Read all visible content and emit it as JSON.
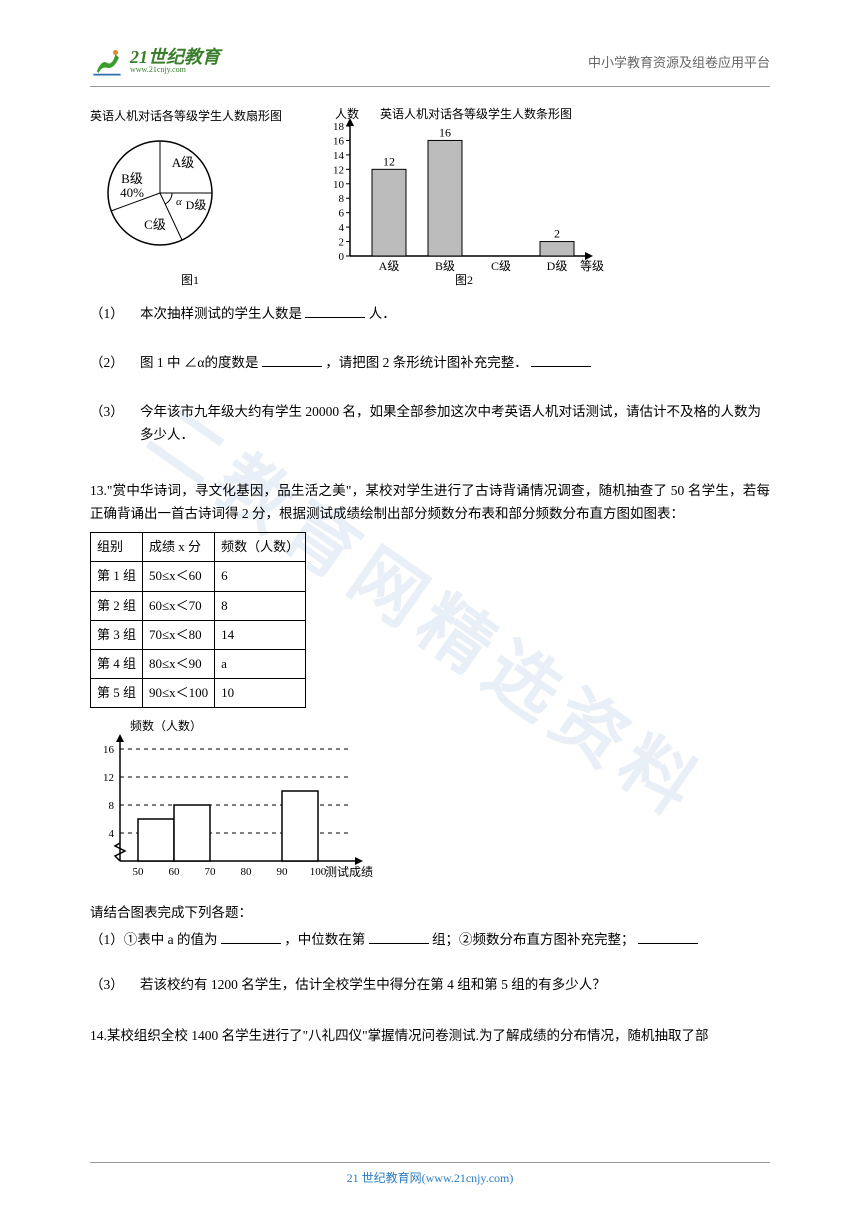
{
  "header": {
    "logo_title": "21世纪教育",
    "logo_sub": "www.21cnjy.com",
    "right_text": "中小学教育资源及组卷应用平台"
  },
  "watermark": "二教育网精选资料",
  "pie": {
    "title": "英语人机对话各等级学生人数扇形图",
    "labels": {
      "a": "A级",
      "b": "B级",
      "b_pct": "40%",
      "c": "C级",
      "d": "D级",
      "alpha": "α"
    },
    "caption": "图1",
    "colors": {
      "stroke": "#000000",
      "fill": "#ffffff"
    }
  },
  "bar": {
    "title": "英语人机对话各等级学生人数条形图",
    "y_label": "人数",
    "x_label": "等级",
    "caption": "图2",
    "categories": [
      "A级",
      "B级",
      "C级",
      "D级"
    ],
    "values": [
      12,
      16,
      null,
      2
    ],
    "labels_on_bars": [
      "12",
      "16",
      "",
      "2"
    ],
    "y_ticks": [
      0,
      2,
      4,
      6,
      8,
      10,
      12,
      14,
      16,
      18
    ],
    "bar_fill": "#bcbcbc",
    "stroke": "#000000"
  },
  "q": {
    "q1_num": "（1）",
    "q1_text_a": "本次抽样测试的学生人数是",
    "q1_text_b": "人．",
    "q2_num": "（2）",
    "q2_text_a": "图 1 中 ∠α的度数是",
    "q2_text_b": "，请把图 2 条形统计图补充完整．",
    "q3_num": "（3）",
    "q3_text": "今年该市九年级大约有学生 20000 名，如果全部参加这次中考英语人机对话测试，请估计不及格的人数为多少人．"
  },
  "p13_intro": "13.\"赏中华诗词，寻文化基因，品生活之美\"，某校对学生进行了古诗背诵情况调查，随机抽查了 50 名学生，若每正确背诵出一首古诗词得 2 分，根据测试成绩绘制出部分频数分布表和部分频数分布直方图如图表：",
  "freq_table": {
    "headers": [
      "组别",
      "成绩 x 分",
      "频数（人数）"
    ],
    "rows": [
      [
        "第 1 组",
        "50≤x＜60",
        "6"
      ],
      [
        "第 2 组",
        "60≤x＜70",
        "8"
      ],
      [
        "第 3 组",
        "70≤x＜80",
        "14"
      ],
      [
        "第 4 组",
        "80≤x＜90",
        "a"
      ],
      [
        "第 5 组",
        "90≤x＜100",
        "10"
      ]
    ]
  },
  "histo": {
    "y_label": "频数（人数）",
    "x_label": "测试成绩",
    "y_ticks": [
      4,
      8,
      12,
      16
    ],
    "x_ticks": [
      50,
      60,
      70,
      80,
      90,
      100
    ],
    "bars": [
      {
        "x0": 50,
        "x1": 60,
        "h": 6
      },
      {
        "x0": 60,
        "x1": 70,
        "h": 8
      },
      {
        "x0": 90,
        "x1": 100,
        "h": 10
      }
    ],
    "stroke": "#000000",
    "fill": "#ffffff"
  },
  "p13_prompt": "请结合图表完成下列各题：",
  "p13_sub1_a": "（1）①表中 a 的值为",
  "p13_sub1_b": "，中位数在第",
  "p13_sub1_c": "组；②频数分布直方图补充完整；",
  "p13_sub3_num": "（3）",
  "p13_sub3": "若该校约有 1200 名学生，估计全校学生中得分在第 4 组和第 5 组的有多少人？",
  "p14": "14.某校组织全校 1400 名学生进行了\"八礼四仪\"掌握情况问卷测试.为了解成绩的分布情况，随机抽取了部",
  "footer": "21 世纪教育网(www.21cnjy.com)"
}
